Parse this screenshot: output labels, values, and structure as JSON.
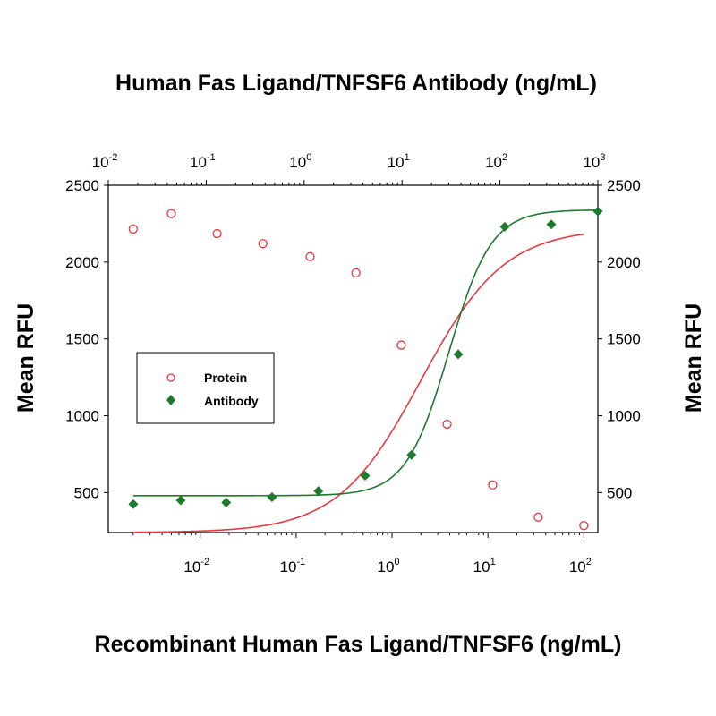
{
  "chart_data": {
    "type": "scatter",
    "top_title": "Human Fas Ligand/TNFSF6 Antibody (ng/mL)",
    "bottom_title": "Recombinant Human Fas Ligand/TNFSF6 (ng/mL)",
    "ylabel_left": "Mean RFU",
    "ylabel_right": "Mean RFU",
    "y_ticks": [
      "500",
      "1000",
      "1500",
      "2000",
      "2500"
    ],
    "top_axis": {
      "scale": "log",
      "xlim": [
        0.01,
        1000
      ],
      "ticks": [
        {
          "base": "10",
          "exp": "-2",
          "value": 0.01
        },
        {
          "base": "10",
          "exp": "-1",
          "value": 0.1
        },
        {
          "base": "10",
          "exp": "0",
          "value": 1
        },
        {
          "base": "10",
          "exp": "1",
          "value": 10
        },
        {
          "base": "10",
          "exp": "2",
          "value": 100
        },
        {
          "base": "10",
          "exp": "3",
          "value": 1000
        }
      ]
    },
    "bottom_axis": {
      "scale": "log",
      "xlim": [
        0.0011,
        140
      ],
      "ticks": [
        {
          "base": "10",
          "exp": "-2",
          "value": 0.01
        },
        {
          "base": "10",
          "exp": "-1",
          "value": 0.1
        },
        {
          "base": "10",
          "exp": "0",
          "value": 1
        },
        {
          "base": "10",
          "exp": "1",
          "value": 10
        },
        {
          "base": "10",
          "exp": "2",
          "value": 100
        }
      ]
    },
    "ylim": [
      240,
      2500
    ],
    "legend": {
      "position": "left-middle",
      "entries": [
        "Protein",
        "Antibody"
      ]
    },
    "series": [
      {
        "name": "Protein",
        "axis": "bottom",
        "color": "#e8393f",
        "marker": "open-circle",
        "x": [
          0.002,
          0.005,
          0.015,
          0.045,
          0.14,
          0.42,
          1.25,
          3.75,
          11.2,
          33.5,
          100
        ],
        "y": [
          2215,
          2315,
          2185,
          2120,
          2035,
          1930,
          1460,
          945,
          550,
          340,
          285
        ],
        "fit": {
          "bottom": 240,
          "top": 2220,
          "ec50": 2.0,
          "hill": 1.0
        }
      },
      {
        "name": "Antibody",
        "axis": "top",
        "color": "#1e7a2e",
        "marker": "filled-diamond",
        "x": [
          0.018,
          0.055,
          0.16,
          0.47,
          1.4,
          4.2,
          12.5,
          37.5,
          112,
          335,
          1000
        ],
        "y": [
          425,
          450,
          435,
          470,
          510,
          610,
          745,
          1400,
          2230,
          2245,
          2330
        ],
        "fit": {
          "bottom": 480,
          "top": 2340,
          "ec50": 30,
          "hill": 2.0
        }
      }
    ]
  }
}
